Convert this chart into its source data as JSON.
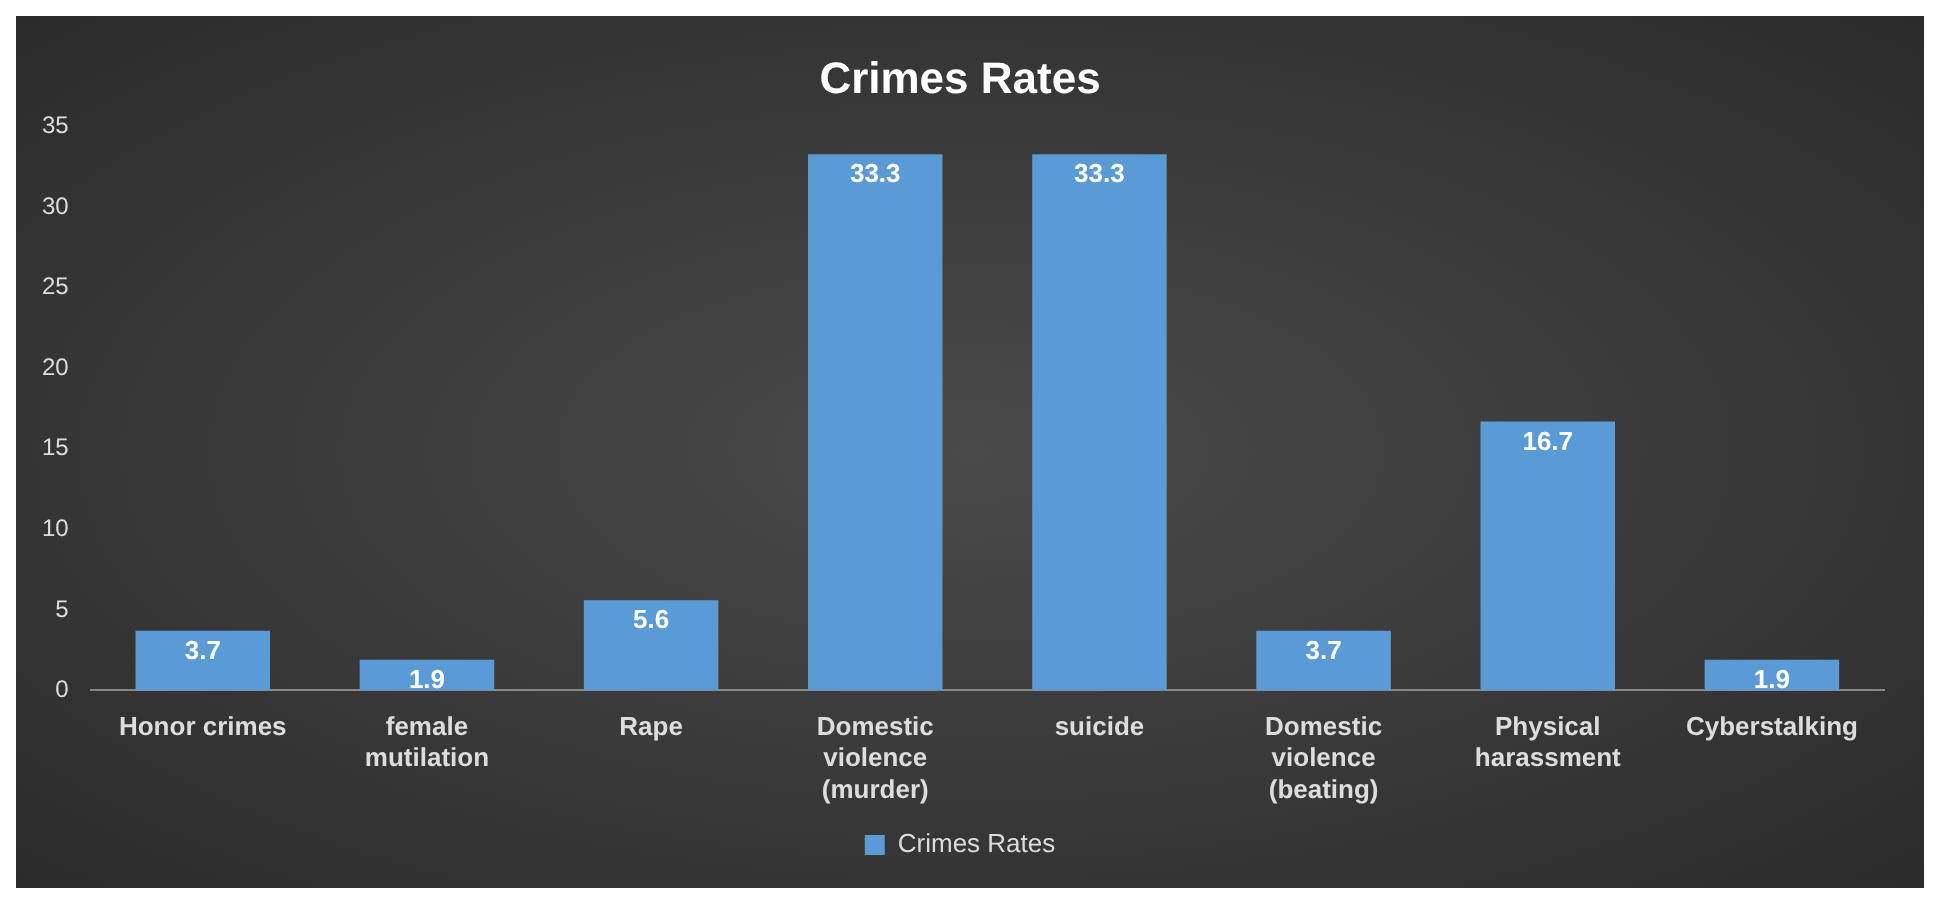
{
  "chart_data": {
    "type": "bar",
    "title": "Crimes Rates",
    "categories": [
      "Honor crimes",
      "female mutilation",
      "Rape",
      "Domestic violence (murder)",
      "suicide",
      "Domestic violence (beating)",
      "Physical harassment",
      "Cyberstalking"
    ],
    "series": [
      {
        "name": "Crimes Rates",
        "color": "#5b9bd5",
        "values": [
          3.7,
          1.9,
          5.6,
          33.3,
          33.3,
          3.7,
          16.7,
          1.9
        ]
      }
    ],
    "ylim": [
      0,
      35
    ],
    "yticks": [
      0,
      5,
      10,
      15,
      20,
      25,
      30,
      35
    ],
    "grid": false,
    "legend": "bottom",
    "data_labels": true
  }
}
